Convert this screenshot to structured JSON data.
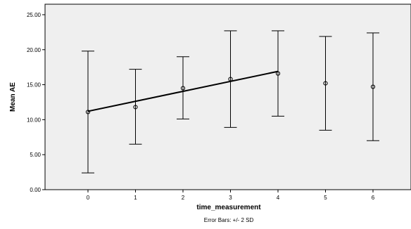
{
  "chart_data": {
    "type": "errorbar",
    "xlabel": "time_measurement",
    "ylabel": "Mean AE",
    "categories": [
      "0",
      "1",
      "2",
      "3",
      "4",
      "5",
      "6"
    ],
    "series": [
      {
        "values": [
          11.1,
          11.8,
          14.5,
          15.8,
          16.6,
          15.2,
          14.7
        ],
        "error_low": [
          2.4,
          6.5,
          10.1,
          8.9,
          10.5,
          8.5,
          7.0
        ],
        "error_high": [
          19.8,
          17.2,
          19.0,
          22.7,
          22.7,
          21.9,
          22.4
        ]
      }
    ],
    "fit_line": {
      "from_category": "0",
      "to_category": "4",
      "y_start": 11.2,
      "y_end": 16.9
    },
    "ylim": [
      0,
      26.5
    ],
    "y_ticks": [
      "0.00",
      "5.00",
      "10.00",
      "15.00",
      "20.00",
      "25.00"
    ],
    "y_tick_values": [
      0,
      5,
      10,
      15,
      20,
      25
    ],
    "footnote": "Error Bars: +/- 2 SD",
    "plot_background": "#efefef",
    "mark_color": "#000000",
    "grid": false,
    "legend": "none"
  }
}
